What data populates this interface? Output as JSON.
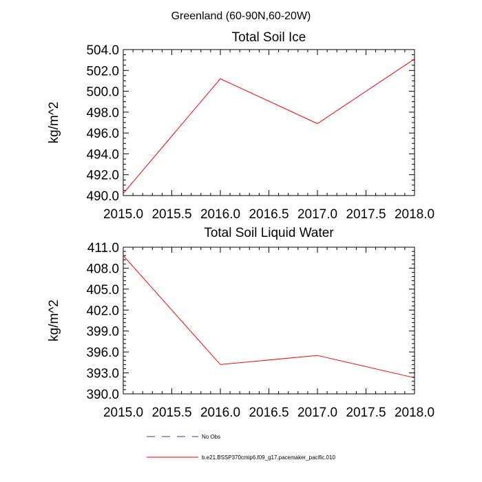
{
  "figure": {
    "suptitle": "Greenland (60-90N,60-20W)"
  },
  "chart_data": [
    {
      "type": "line",
      "title": "Total Soil Ice",
      "xlabel": "",
      "ylabel": "kg/m^2",
      "xlim": [
        2015.0,
        2018.0
      ],
      "ylim": [
        490.0,
        504.0
      ],
      "xticks": [
        "2015.0",
        "2015.5",
        "2016.0",
        "2016.5",
        "2017.0",
        "2017.5",
        "2018.0"
      ],
      "yticks": [
        "490.0",
        "492.0",
        "494.0",
        "496.0",
        "498.0",
        "500.0",
        "502.0",
        "504.0"
      ],
      "x": [
        2015.0,
        2016.0,
        2017.0,
        2018.0
      ],
      "series": [
        {
          "name": "b.e21.BSSP370cmip6.f09_g17.pacemaker_pacific.010",
          "color": "#ff0000",
          "values": [
            490.2,
            501.2,
            496.9,
            503.1
          ]
        }
      ]
    },
    {
      "type": "line",
      "title": "Total Soil Liquid Water",
      "xlabel": "",
      "ylabel": "kg/m^2",
      "xlim": [
        2015.0,
        2018.0
      ],
      "ylim": [
        390.0,
        411.0
      ],
      "xticks": [
        "2015.0",
        "2015.5",
        "2016.0",
        "2016.5",
        "2017.0",
        "2017.5",
        "2018.0"
      ],
      "yticks": [
        "390.0",
        "393.0",
        "396.0",
        "399.0",
        "402.0",
        "405.0",
        "408.0",
        "411.0"
      ],
      "x": [
        2015.0,
        2016.0,
        2017.0,
        2018.0
      ],
      "series": [
        {
          "name": "b.e21.BSSP370cmip6.f09_g17.pacemaker_pacific.010",
          "color": "#ff0000",
          "values": [
            409.8,
            394.2,
            395.5,
            392.3
          ]
        }
      ]
    }
  ],
  "legend": [
    {
      "label": "No Obs",
      "color": "#3333aa",
      "style": "dashed"
    },
    {
      "label": "b.e21.BSSP370cmip6.f09_g17.pacemaker_pacific.010",
      "color": "#ff0000",
      "style": "solid"
    }
  ]
}
